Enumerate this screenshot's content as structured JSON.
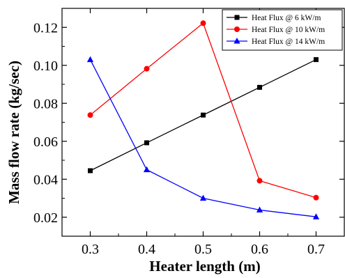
{
  "chart_data": {
    "type": "line",
    "title": "",
    "xlabel": "Heater length (m)",
    "ylabel": "Mass flow rate (kg/sec)",
    "x": [
      0.3,
      0.4,
      0.5,
      0.6,
      0.7
    ],
    "xlim": [
      0.25,
      0.75
    ],
    "ylim": [
      0.01,
      0.13
    ],
    "x_ticks": [
      "0.3",
      "0.4",
      "0.5",
      "0.6",
      "0.7"
    ],
    "y_ticks": [
      "0.02",
      "0.04",
      "0.06",
      "0.08",
      "0.10",
      "0.12"
    ],
    "x_tick_values": [
      0.3,
      0.4,
      0.5,
      0.6,
      0.7
    ],
    "y_tick_values": [
      0.02,
      0.04,
      0.06,
      0.08,
      0.1,
      0.12
    ],
    "grid": false,
    "legend_position": "top-right",
    "series": [
      {
        "name": "Heat Flux @ 6 kW/m",
        "color": "#000000",
        "marker": "square",
        "values": [
          0.0445,
          0.0592,
          0.0738,
          0.0884,
          0.103
        ]
      },
      {
        "name": "Heat Flux @ 10 kW/m",
        "color": "#ff0000",
        "marker": "circle",
        "values": [
          0.0738,
          0.0982,
          0.1222,
          0.0392,
          0.0303
        ]
      },
      {
        "name": "Heat Flux @ 14 kW/m",
        "color": "#0000ff",
        "marker": "triangle",
        "values": [
          0.103,
          0.045,
          0.03,
          0.0238,
          0.0202
        ]
      }
    ]
  }
}
